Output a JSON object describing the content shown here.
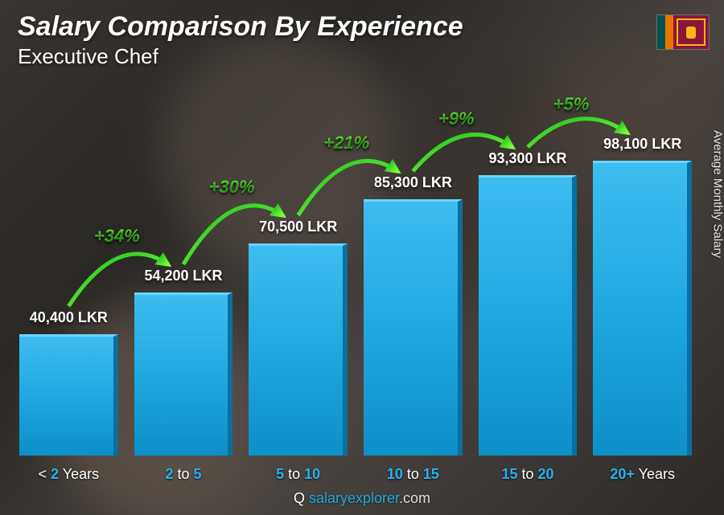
{
  "header": {
    "title": "Salary Comparison By Experience",
    "subtitle": "Executive Chef"
  },
  "ylabel": "Average Monthly Salary",
  "footer": {
    "brand_q": "Q",
    "domain": "salaryexplorer",
    "tld": ".com"
  },
  "flag": {
    "name": "sri-lanka-flag"
  },
  "chart": {
    "type": "bar",
    "currency": "LKR",
    "max_value": 98100,
    "bar_color_top": "#3dbdf0",
    "bar_color_bottom": "#0d8fc7",
    "bar_side": "#0a6f9e",
    "accent_green_top": "#7cff3d",
    "accent_green_bottom": "#1fbf1f",
    "x_highlight_color": "#29b1ec",
    "categories": [
      {
        "label_pre": "< ",
        "label_bold": "2",
        "label_post": " Years",
        "value": 40400,
        "value_label": "40,400 LKR"
      },
      {
        "label_pre": "",
        "label_bold": "2",
        "label_mid": " to ",
        "label_bold2": "5",
        "label_post": "",
        "value": 54200,
        "value_label": "54,200 LKR",
        "pct": "+34%"
      },
      {
        "label_pre": "",
        "label_bold": "5",
        "label_mid": " to ",
        "label_bold2": "10",
        "label_post": "",
        "value": 70500,
        "value_label": "70,500 LKR",
        "pct": "+30%"
      },
      {
        "label_pre": "",
        "label_bold": "10",
        "label_mid": " to ",
        "label_bold2": "15",
        "label_post": "",
        "value": 85300,
        "value_label": "85,300 LKR",
        "pct": "+21%"
      },
      {
        "label_pre": "",
        "label_bold": "15",
        "label_mid": " to ",
        "label_bold2": "20",
        "label_post": "",
        "value": 93300,
        "value_label": "93,300 LKR",
        "pct": "+9%"
      },
      {
        "label_pre": "",
        "label_bold": "20+",
        "label_post": " Years",
        "value": 98100,
        "value_label": "98,100 LKR",
        "pct": "+5%"
      }
    ]
  }
}
